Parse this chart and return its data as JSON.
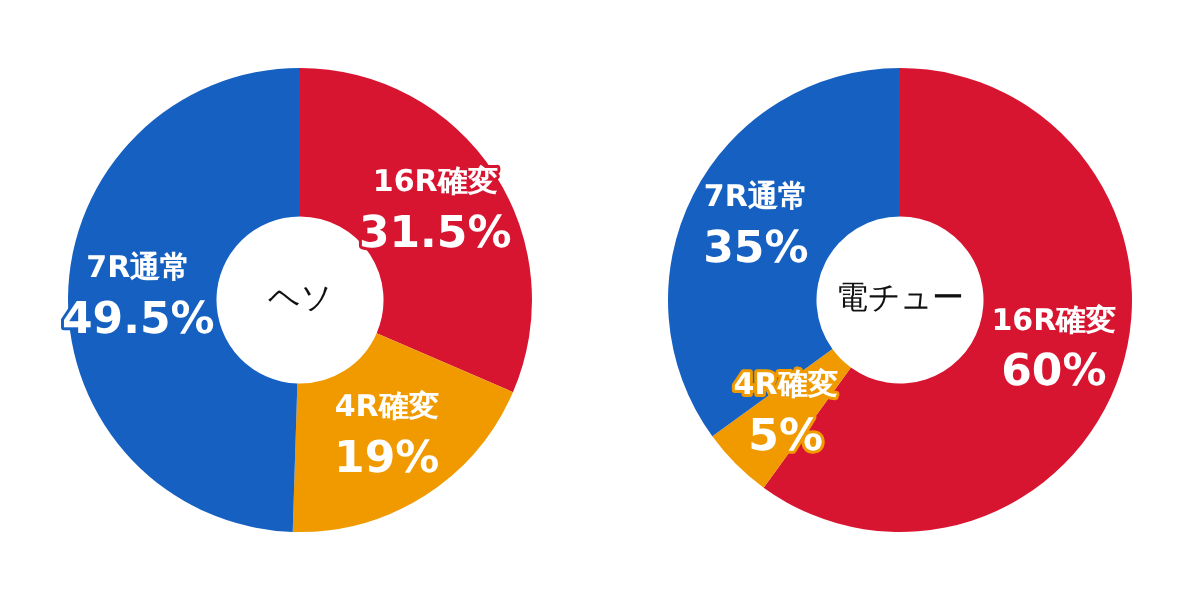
{
  "chart_data": [
    {
      "type": "donut",
      "title": "ヘソ",
      "categories": [
        "16R確変",
        "4R確変",
        "7R通常"
      ],
      "values": [
        31.5,
        19,
        49.5
      ],
      "colors": [
        "#d81530",
        "#f09a00",
        "#1560c0"
      ],
      "value_labels": [
        "31.5%",
        "19%",
        "49.5%"
      ],
      "legend": false
    },
    {
      "type": "donut",
      "title": "電チュー",
      "categories": [
        "16R確変",
        "4R確変",
        "7R通常"
      ],
      "values": [
        60,
        5,
        35
      ],
      "colors": [
        "#d81530",
        "#f09a00",
        "#1560c0"
      ],
      "value_labels": [
        "60%",
        "5%",
        "35%"
      ],
      "legend": false
    }
  ]
}
